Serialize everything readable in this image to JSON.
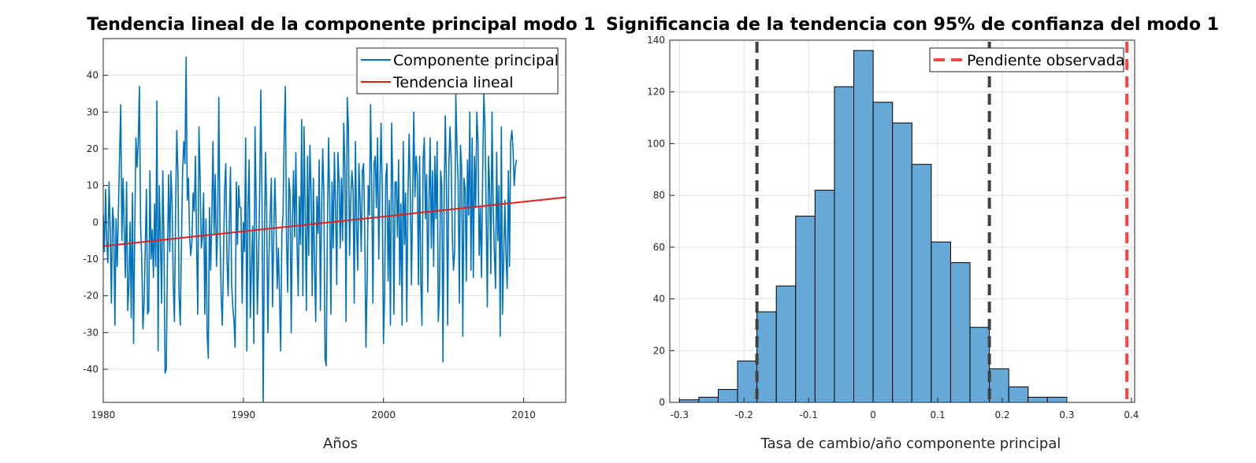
{
  "colors": {
    "series_blue": "#0072BD",
    "trend_red": "#D9241C",
    "hist_fill": "#66A9D9",
    "hist_edge": "#000000",
    "ci_line": "#404040",
    "observed_line": "#F04848",
    "grid": "#DFDFDF"
  },
  "chart_data": [
    {
      "type": "line",
      "title": "Tendencia lineal de la componente principal modo 1",
      "xlabel": "Años",
      "ylabel": "",
      "xlim": [
        1980,
        2013
      ],
      "ylim": [
        -49,
        50
      ],
      "xticks": [
        1980,
        1990,
        2000,
        2010
      ],
      "yticks": [
        -40,
        -30,
        -20,
        -10,
        0,
        10,
        20,
        30,
        40
      ],
      "grid": true,
      "legend": {
        "placement": "top-right",
        "entries": [
          "Componente principal",
          "Tendencia lineal"
        ]
      },
      "series": [
        {
          "name": "Componente principal",
          "x_start": 1980,
          "x_step": 0.0833,
          "values": [
            2,
            -8,
            9,
            -5,
            -11,
            11,
            -2,
            -22,
            4,
            0,
            -28,
            1,
            -12,
            3,
            18,
            32,
            -5,
            12,
            -2,
            -15,
            11,
            -24,
            -17,
            0,
            -26,
            8,
            -33,
            -2,
            23,
            15,
            22,
            37,
            -1,
            -10,
            -29,
            -22,
            -7,
            9,
            -25,
            -24,
            14,
            -10,
            -2,
            -15,
            5,
            -12,
            33,
            -35,
            10,
            -4,
            -22,
            14,
            -5,
            -41,
            -40,
            -10,
            13,
            -8,
            14,
            5,
            -17,
            -27,
            4,
            25,
            13,
            -20,
            -28,
            -6,
            14,
            22,
            16,
            45,
            6,
            12,
            -4,
            -9,
            -5,
            8,
            3,
            18,
            -6,
            -25,
            26,
            12,
            -7,
            -4,
            8,
            -25,
            1,
            -30,
            -37,
            4,
            -13,
            1,
            22,
            -3,
            13,
            -12,
            -2,
            34,
            -2,
            -20,
            -28,
            -10,
            9,
            16,
            -10,
            -20,
            -1,
            15,
            -17,
            -23,
            -27,
            -34,
            11,
            -6,
            10,
            4,
            4,
            -22,
            0,
            -8,
            23,
            -35,
            4,
            17,
            -26,
            -12,
            -1,
            -33,
            26,
            5,
            -25,
            -11,
            8,
            36,
            6,
            -50,
            -7,
            19,
            3,
            -30,
            -9,
            2,
            12,
            -23,
            -5,
            12,
            0,
            -18,
            -7,
            -20,
            -35,
            -3,
            2,
            24,
            37,
            -5,
            -19,
            12,
            8,
            -30,
            0,
            14,
            -4,
            19,
            -6,
            -20,
            7,
            -6,
            28,
            -20,
            26,
            3,
            -24,
            18,
            -9,
            21,
            9,
            -20,
            12,
            -12,
            -27,
            7,
            -3,
            17,
            -24,
            3,
            20,
            7,
            -37,
            -39,
            -2,
            23,
            6,
            -25,
            11,
            -7,
            19,
            4,
            -17,
            19,
            11,
            -7,
            12,
            -5,
            27,
            15,
            -27,
            34,
            26,
            -9,
            6,
            14,
            9,
            -22,
            22,
            -1,
            -13,
            16,
            6,
            -8,
            14,
            16,
            -3,
            -34,
            -17,
            10,
            2,
            32,
            9,
            -22,
            16,
            18,
            4,
            23,
            -10,
            10,
            27,
            8,
            -33,
            -20,
            12,
            16,
            -16,
            6,
            -28,
            27,
            10,
            -25,
            11,
            11,
            -4,
            17,
            -17,
            5,
            -28,
            22,
            -6,
            8,
            -27,
            7,
            24,
            9,
            -17,
            6,
            30,
            7,
            18,
            13,
            -17,
            18,
            -16,
            -28,
            17,
            23,
            1,
            13,
            -19,
            5,
            23,
            -7,
            14,
            -12,
            18,
            1,
            22,
            -27,
            -19,
            14,
            10,
            -38,
            6,
            29,
            10,
            -28,
            15,
            26,
            17,
            -4,
            -13,
            -8,
            35,
            20,
            11,
            -22,
            21,
            15,
            -31,
            12,
            9,
            -16,
            17,
            2,
            30,
            -13,
            23,
            -15,
            18,
            4,
            30,
            22,
            -9,
            4,
            -15,
            13,
            35,
            26,
            2,
            -23,
            18,
            9,
            -14,
            30,
            4,
            -8,
            -18,
            19,
            -5,
            10,
            -31,
            26,
            -25,
            -10,
            6,
            -9,
            -18,
            14,
            -12,
            22,
            25,
            20,
            10,
            15,
            17
          ]
        },
        {
          "name": "Tendencia lineal",
          "x": [
            1980,
            2013
          ],
          "values": [
            -6.5,
            6.8
          ]
        }
      ]
    },
    {
      "type": "bar",
      "title": "Significancia de la tendencia con 95% de confianza del modo 1",
      "xlabel": "Tasa de cambio/año componente principal",
      "ylabel": "",
      "xlim": [
        -0.315,
        0.405
      ],
      "ylim": [
        0,
        140
      ],
      "xticks": [
        -0.3,
        -0.2,
        -0.1,
        0,
        0.1,
        0.2,
        0.3,
        0.4
      ],
      "yticks": [
        0,
        20,
        40,
        60,
        80,
        100,
        120,
        140
      ],
      "grid": true,
      "legend": {
        "placement": "top-right",
        "entries": [
          "Pendiente observada"
        ]
      },
      "bin_edges": [
        -0.3,
        -0.27,
        -0.24,
        -0.21,
        -0.18,
        -0.15,
        -0.12,
        -0.09,
        -0.06,
        -0.03,
        0.0,
        0.03,
        0.06,
        0.09,
        0.12,
        0.15,
        0.18,
        0.21,
        0.24,
        0.27,
        0.3
      ],
      "counts": [
        1,
        2,
        5,
        16,
        35,
        45,
        72,
        82,
        122,
        136,
        116,
        108,
        92,
        62,
        54,
        29,
        13,
        6,
        2,
        2
      ],
      "confidence_bounds": [
        -0.18,
        0.18
      ],
      "observed_slope": 0.393
    }
  ]
}
